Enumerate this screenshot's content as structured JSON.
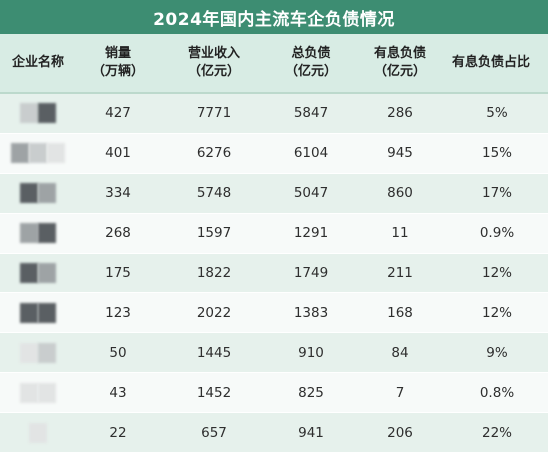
{
  "title": "2024年国内主流车企负债情况",
  "headers": [
    "企业名称",
    "销量\n（万辆）",
    "营业收入\n（亿元）",
    "总负债\n（亿元）",
    "有息负债\n（亿元）",
    "有息负债占比"
  ],
  "rows": [
    {
      "sales": "427",
      "revenue": "7771",
      "total_debt": "5847",
      "interest_debt": "286",
      "ratio": "5%"
    },
    {
      "sales": "401",
      "revenue": "6276",
      "total_debt": "6104",
      "interest_debt": "945",
      "ratio": "15%"
    },
    {
      "sales": "334",
      "revenue": "5748",
      "total_debt": "5047",
      "interest_debt": "860",
      "ratio": "17%"
    },
    {
      "sales": "268",
      "revenue": "1597",
      "total_debt": "1291",
      "interest_debt": "11",
      "ratio": "0.9%"
    },
    {
      "sales": "175",
      "revenue": "1822",
      "total_debt": "1749",
      "interest_debt": "211",
      "ratio": "12%"
    },
    {
      "sales": "123",
      "revenue": "2022",
      "total_debt": "1383",
      "interest_debt": "168",
      "ratio": "12%"
    },
    {
      "sales": "50",
      "revenue": "1445",
      "total_debt": "910",
      "interest_debt": "84",
      "ratio": "9%"
    },
    {
      "sales": "43",
      "revenue": "1452",
      "total_debt": "825",
      "interest_debt": "7",
      "ratio": "0.8%"
    },
    {
      "sales": "22",
      "revenue": "657",
      "total_debt": "941",
      "interest_debt": "206",
      "ratio": "22%"
    }
  ],
  "colors": {
    "title_bg": "#3d8d72",
    "header_bg": "#d8ece4",
    "row_odd": "#e6f1ec",
    "row_even": "#f7faf9"
  },
  "company_name_style": "pixelated-redacted"
}
